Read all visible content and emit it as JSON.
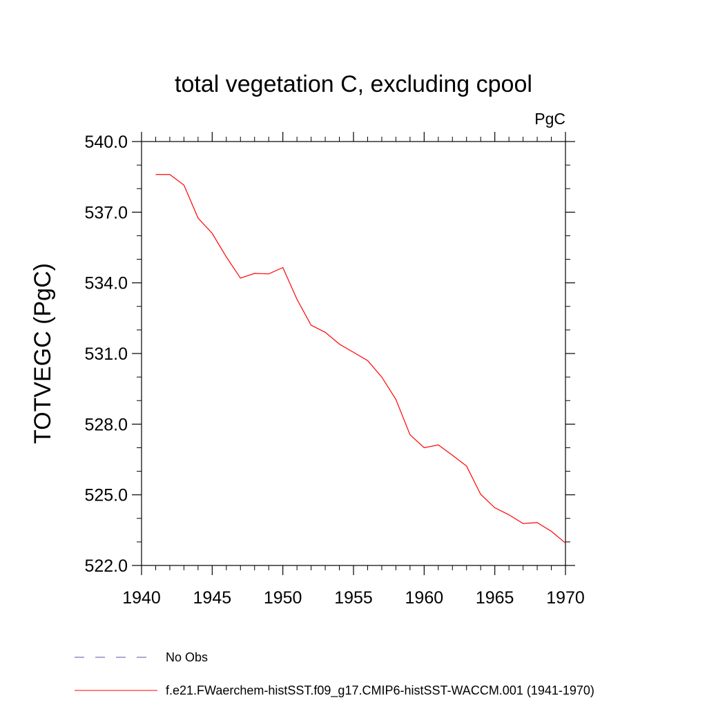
{
  "chart_data": {
    "type": "line",
    "title": "total vegetation C, excluding cpool",
    "units_label": "PgC",
    "xlabel": "",
    "ylabel": "TOTVEGC  (PgC)",
    "xlim": [
      1940,
      1970
    ],
    "ylim": [
      522.0,
      540.0
    ],
    "x_ticks": [
      1940,
      1945,
      1950,
      1955,
      1960,
      1965,
      1970
    ],
    "x_tick_labels": [
      "1940",
      "1945",
      "1950",
      "1955",
      "1960",
      "1965",
      "1970"
    ],
    "y_ticks": [
      522.0,
      525.0,
      528.0,
      531.0,
      534.0,
      537.0,
      540.0
    ],
    "y_tick_labels": [
      "522.0",
      "525.0",
      "528.0",
      "531.0",
      "534.0",
      "537.0",
      "540.0"
    ],
    "grid": false,
    "legend_position": "bottom-left",
    "legend": [
      {
        "label": "No Obs",
        "style": "dashed",
        "color": "#5b4fa8"
      },
      {
        "label": "f.e21.FWaerchem-histSST.f09_g17.CMIP6-histSST-WACCM.001 (1941-1970)",
        "style": "solid",
        "color": "#ff0000"
      }
    ],
    "series": [
      {
        "name": "f.e21.FWaerchem-histSST.f09_g17.CMIP6-histSST-WACCM.001 (1941-1970)",
        "color": "#ff0000",
        "x": [
          1941,
          1942,
          1943,
          1944,
          1945,
          1946,
          1947,
          1948,
          1949,
          1950,
          1951,
          1952,
          1953,
          1954,
          1955,
          1956,
          1957,
          1958,
          1959,
          1960,
          1961,
          1962,
          1963,
          1964,
          1965,
          1966,
          1967,
          1968,
          1969,
          1970
        ],
        "y": [
          538.6,
          538.6,
          538.15,
          536.75,
          536.1,
          535.1,
          534.2,
          534.4,
          534.38,
          534.65,
          533.3,
          532.2,
          531.9,
          531.4,
          531.05,
          530.7,
          530.0,
          529.05,
          527.55,
          527.0,
          527.12,
          526.68,
          526.22,
          525.02,
          524.45,
          524.15,
          523.78,
          523.82,
          523.45,
          522.95
        ]
      }
    ]
  }
}
